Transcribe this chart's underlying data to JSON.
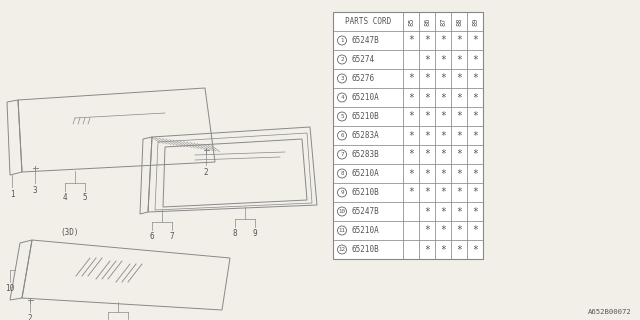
{
  "bg_color": "#f2efe9",
  "table_header": [
    "PARTS CORD",
    "85",
    "86",
    "87",
    "88",
    "89"
  ],
  "rows": [
    {
      "num": 1,
      "part": "65247B",
      "cols": [
        "*",
        "*",
        "*",
        "*",
        "*"
      ]
    },
    {
      "num": 2,
      "part": "65274",
      "cols": [
        " ",
        "*",
        "*",
        "*",
        "*"
      ]
    },
    {
      "num": 3,
      "part": "65276",
      "cols": [
        "*",
        "*",
        "*",
        "*",
        "*"
      ]
    },
    {
      "num": 4,
      "part": "65210A",
      "cols": [
        "*",
        "*",
        "*",
        "*",
        "*"
      ]
    },
    {
      "num": 5,
      "part": "65210B",
      "cols": [
        "*",
        "*",
        "*",
        "*",
        "*"
      ]
    },
    {
      "num": 6,
      "part": "65283A",
      "cols": [
        "*",
        "*",
        "*",
        "*",
        "*"
      ]
    },
    {
      "num": 7,
      "part": "65283B",
      "cols": [
        "*",
        "*",
        "*",
        "*",
        "*"
      ]
    },
    {
      "num": 8,
      "part": "65210A",
      "cols": [
        "*",
        "*",
        "*",
        "*",
        "*"
      ]
    },
    {
      "num": 9,
      "part": "65210B",
      "cols": [
        "*",
        "*",
        "*",
        "*",
        "*"
      ]
    },
    {
      "num": 10,
      "part": "65247B",
      "cols": [
        " ",
        "*",
        "*",
        "*",
        "*"
      ]
    },
    {
      "num": 11,
      "part": "65210A",
      "cols": [
        " ",
        "*",
        "*",
        "*",
        "*"
      ]
    },
    {
      "num": 12,
      "part": "65210B",
      "cols": [
        " ",
        "*",
        "*",
        "*",
        "*"
      ]
    }
  ],
  "diagram_note": "A652B00072",
  "line_color": "#888888",
  "text_color": "#555555"
}
